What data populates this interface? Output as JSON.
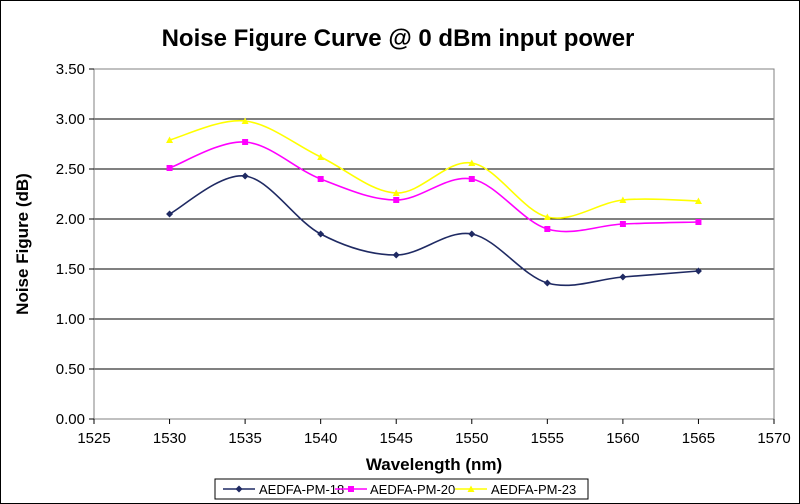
{
  "chart_data": {
    "type": "line",
    "title": "Noise Figure Curve @ 0 dBm input power",
    "xlabel": "Wavelength (nm)",
    "ylabel": "Noise Figure (dB)",
    "xlim": [
      1525,
      1570
    ],
    "ylim": [
      0,
      3.5
    ],
    "x_ticks": [
      "1525",
      "1530",
      "1535",
      "1540",
      "1545",
      "1550",
      "1555",
      "1560",
      "1565",
      "1570"
    ],
    "y_ticks": [
      "0.00",
      "0.50",
      "1.00",
      "1.50",
      "2.00",
      "2.50",
      "3.00",
      "3.50"
    ],
    "grid": true,
    "legend_position": "bottom",
    "x": [
      1530,
      1535,
      1540,
      1545,
      1550,
      1555,
      1560,
      1565
    ],
    "series": [
      {
        "name": "AEDFA-PM-18",
        "color": "#1f2a63",
        "marker": "diamond",
        "values": [
          2.05,
          2.43,
          1.85,
          1.64,
          1.85,
          1.36,
          1.42,
          1.48
        ]
      },
      {
        "name": "AEDFA-PM-20",
        "color": "#ff00ff",
        "marker": "square",
        "values": [
          2.51,
          2.77,
          2.4,
          2.19,
          2.4,
          1.9,
          1.95,
          1.97
        ]
      },
      {
        "name": "AEDFA-PM-23",
        "color": "#ffff00",
        "marker": "triangle",
        "values": [
          2.79,
          2.98,
          2.62,
          2.26,
          2.56,
          2.02,
          2.19,
          2.18
        ]
      }
    ]
  }
}
